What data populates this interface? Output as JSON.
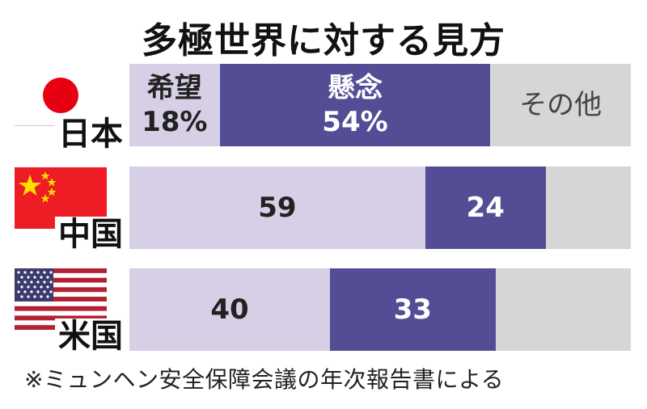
{
  "title": "多極世界に対する見方",
  "footnote": "※ミュンヘン安全保障会議の年次報告書による",
  "colors": {
    "hope": "#d7cfe6",
    "concern": "#544d96",
    "other": "#d6d6d6"
  },
  "chart_data": {
    "type": "bar",
    "orientation": "horizontal",
    "stacked": true,
    "title": "多極世界に対する見方",
    "categories": [
      "日本",
      "中国",
      "米国"
    ],
    "series": [
      {
        "name": "希望",
        "values": [
          18,
          59,
          40
        ]
      },
      {
        "name": "懸念",
        "values": [
          54,
          24,
          33
        ]
      },
      {
        "name": "その他",
        "values": [
          28,
          17,
          27
        ]
      }
    ],
    "xlim": [
      0,
      100
    ],
    "unit": "%",
    "labels": {
      "日本": {
        "hope": "希望\n18%",
        "concern": "懸念\n54%",
        "other": "その他"
      },
      "中国": {
        "hope": "59",
        "concern": "24",
        "other": ""
      },
      "米国": {
        "hope": "40",
        "concern": "33",
        "other": ""
      }
    }
  },
  "flags": [
    "japan-flag-icon",
    "china-flag-icon",
    "us-flag-icon"
  ]
}
